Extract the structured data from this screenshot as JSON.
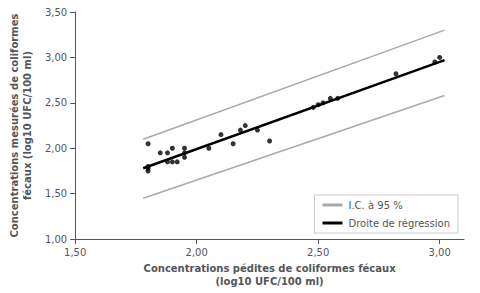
{
  "chart_data": {
    "type": "scatter",
    "xlabel": "Concentrations pédites de coliformes fécaux\n(log10 UFC/100 ml)",
    "ylabel": "Concentrations mesurées de coliformes\nfécaux (log10 UFC/100 ml)",
    "series": [
      {
        "name": "I.C. à 95 %",
        "type": "line",
        "color": "#aaaaaa",
        "x": [
          1.78,
          3.02
        ],
        "values": [
          2.1,
          3.3
        ]
      },
      {
        "name": "I.C. à 95 %",
        "type": "line",
        "color": "#aaaaaa",
        "x": [
          1.78,
          3.02
        ],
        "values": [
          1.45,
          2.58
        ]
      },
      {
        "name": "Droite de régression",
        "type": "line",
        "color": "#000000",
        "x": [
          1.78,
          3.02
        ],
        "values": [
          1.78,
          2.97
        ]
      },
      {
        "type": "scatter",
        "color": "#000000",
        "x": [
          1.8,
          1.8,
          1.8,
          1.8,
          1.85,
          1.88,
          1.88,
          1.9,
          1.9,
          1.92,
          1.95,
          1.95,
          1.95,
          2.05,
          2.1,
          2.15,
          2.18,
          2.2,
          2.25,
          2.3,
          2.48,
          2.5,
          2.52,
          2.55,
          2.58,
          2.82,
          2.98,
          3.0
        ],
        "values": [
          1.78,
          1.75,
          1.8,
          2.05,
          1.95,
          1.85,
          1.95,
          1.85,
          2.0,
          1.85,
          1.9,
          1.95,
          2.0,
          2.0,
          2.15,
          2.05,
          2.2,
          2.25,
          2.2,
          2.08,
          2.45,
          2.48,
          2.5,
          2.55,
          2.55,
          2.82,
          2.95,
          3.0
        ]
      }
    ],
    "xlim": [
      1.5,
      3.1
    ],
    "ylim": [
      1.0,
      3.5
    ],
    "xticks": [
      {
        "value": 1.5,
        "label": "1,50"
      },
      {
        "value": 2.0,
        "label": "2,00"
      },
      {
        "value": 2.5,
        "label": "2,50"
      },
      {
        "value": 3.0,
        "label": "3,00"
      }
    ],
    "yticks": [
      {
        "value": 1.0,
        "label": "1,00"
      },
      {
        "value": 1.5,
        "label": "1,50"
      },
      {
        "value": 2.0,
        "label": "2,00"
      },
      {
        "value": 2.5,
        "label": "2,50"
      },
      {
        "value": 3.0,
        "label": "3,00"
      },
      {
        "value": 3.5,
        "label": "3,50"
      }
    ],
    "grid": false,
    "legend": "lower right"
  }
}
